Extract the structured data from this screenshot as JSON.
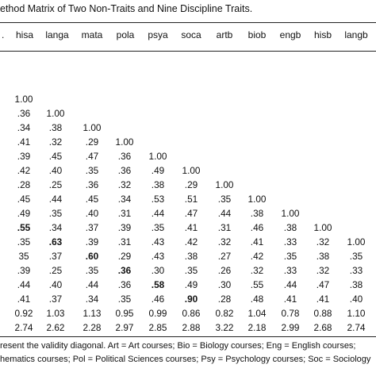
{
  "caption": "ethod Matrix of Two Non-Traits and Nine Discipline Traits.",
  "headers": [
    ".",
    "hisa",
    "langa",
    "mata",
    "pola",
    "psya",
    "soca",
    "artb",
    "biob",
    "engb",
    "hisb",
    "langb"
  ],
  "rows": [
    [
      {
        "v": "1.00"
      }
    ],
    [
      {
        "v": ".36"
      },
      {
        "v": "1.00"
      }
    ],
    [
      {
        "v": ".34"
      },
      {
        "v": ".38"
      },
      {
        "v": "1.00"
      }
    ],
    [
      {
        "v": ".41"
      },
      {
        "v": ".32"
      },
      {
        "v": ".29"
      },
      {
        "v": "1.00"
      }
    ],
    [
      {
        "v": ".39"
      },
      {
        "v": ".45"
      },
      {
        "v": ".47"
      },
      {
        "v": ".36"
      },
      {
        "v": "1.00"
      }
    ],
    [
      {
        "v": ".42"
      },
      {
        "v": ".40"
      },
      {
        "v": ".35"
      },
      {
        "v": ".36"
      },
      {
        "v": ".49"
      },
      {
        "v": "1.00"
      }
    ],
    [
      {
        "v": ".28"
      },
      {
        "v": ".25"
      },
      {
        "v": ".36"
      },
      {
        "v": ".32"
      },
      {
        "v": ".38"
      },
      {
        "v": ".29"
      },
      {
        "v": "1.00"
      }
    ],
    [
      {
        "v": ".45"
      },
      {
        "v": ".44"
      },
      {
        "v": ".45"
      },
      {
        "v": ".34"
      },
      {
        "v": ".53"
      },
      {
        "v": ".51"
      },
      {
        "v": ".35"
      },
      {
        "v": "1.00"
      }
    ],
    [
      {
        "v": ".49"
      },
      {
        "v": ".35"
      },
      {
        "v": ".40"
      },
      {
        "v": ".31"
      },
      {
        "v": ".44"
      },
      {
        "v": ".47"
      },
      {
        "v": ".44"
      },
      {
        "v": ".38"
      },
      {
        "v": "1.00"
      }
    ],
    [
      {
        "v": ".55",
        "b": true
      },
      {
        "v": ".34"
      },
      {
        "v": ".37"
      },
      {
        "v": ".39"
      },
      {
        "v": ".35"
      },
      {
        "v": ".41"
      },
      {
        "v": ".31"
      },
      {
        "v": ".46"
      },
      {
        "v": ".38"
      },
      {
        "v": "1.00"
      }
    ],
    [
      {
        "v": ".35"
      },
      {
        "v": ".63",
        "b": true
      },
      {
        "v": ".39"
      },
      {
        "v": ".31"
      },
      {
        "v": ".43"
      },
      {
        "v": ".42"
      },
      {
        "v": ".32"
      },
      {
        "v": ".41"
      },
      {
        "v": ".33"
      },
      {
        "v": ".32"
      },
      {
        "v": "1.00"
      }
    ],
    [
      {
        "v": "35"
      },
      {
        "v": ".37"
      },
      {
        "v": ".60",
        "b": true
      },
      {
        "v": ".29"
      },
      {
        "v": ".43"
      },
      {
        "v": ".38"
      },
      {
        "v": ".27"
      },
      {
        "v": ".42"
      },
      {
        "v": ".35"
      },
      {
        "v": ".38"
      },
      {
        "v": ".35"
      }
    ],
    [
      {
        "v": ".39"
      },
      {
        "v": ".25"
      },
      {
        "v": ".35"
      },
      {
        "v": ".36",
        "b": true
      },
      {
        "v": ".30"
      },
      {
        "v": ".35"
      },
      {
        "v": ".26"
      },
      {
        "v": ".32"
      },
      {
        "v": ".33"
      },
      {
        "v": ".32"
      },
      {
        "v": ".33"
      }
    ],
    [
      {
        "v": ".44"
      },
      {
        "v": ".40"
      },
      {
        "v": ".44"
      },
      {
        "v": ".36"
      },
      {
        "v": ".58",
        "b": true
      },
      {
        "v": ".49"
      },
      {
        "v": ".30"
      },
      {
        "v": ".55"
      },
      {
        "v": ".44"
      },
      {
        "v": ".47"
      },
      {
        "v": ".38"
      }
    ],
    [
      {
        "v": ".41"
      },
      {
        "v": ".37"
      },
      {
        "v": ".34"
      },
      {
        "v": ".35"
      },
      {
        "v": ".46"
      },
      {
        "v": ".90",
        "b": true
      },
      {
        "v": ".28"
      },
      {
        "v": ".48"
      },
      {
        "v": ".41"
      },
      {
        "v": ".41"
      },
      {
        "v": ".40"
      }
    ],
    [
      {
        "v": "0.92"
      },
      {
        "v": "1.03"
      },
      {
        "v": "1.13"
      },
      {
        "v": "0.95"
      },
      {
        "v": "0.99"
      },
      {
        "v": "0.86"
      },
      {
        "v": "0.82"
      },
      {
        "v": "1.04"
      },
      {
        "v": "0.78"
      },
      {
        "v": "0.88"
      },
      {
        "v": "1.10"
      }
    ],
    [
      {
        "v": "2.74"
      },
      {
        "v": "2.62"
      },
      {
        "v": "2.28"
      },
      {
        "v": "2.97"
      },
      {
        "v": "2.85"
      },
      {
        "v": "2.88"
      },
      {
        "v": "3.22"
      },
      {
        "v": "2.18"
      },
      {
        "v": "2.99"
      },
      {
        "v": "2.68"
      },
      {
        "v": "2.74"
      }
    ]
  ],
  "notes": [
    "resent the validity diagonal. Art = Art courses; Bio = Biology courses; Eng = English courses;",
    "hematics courses; Pol = Political Sciences courses; Psy = Psychology courses; Soc = Sociology"
  ]
}
